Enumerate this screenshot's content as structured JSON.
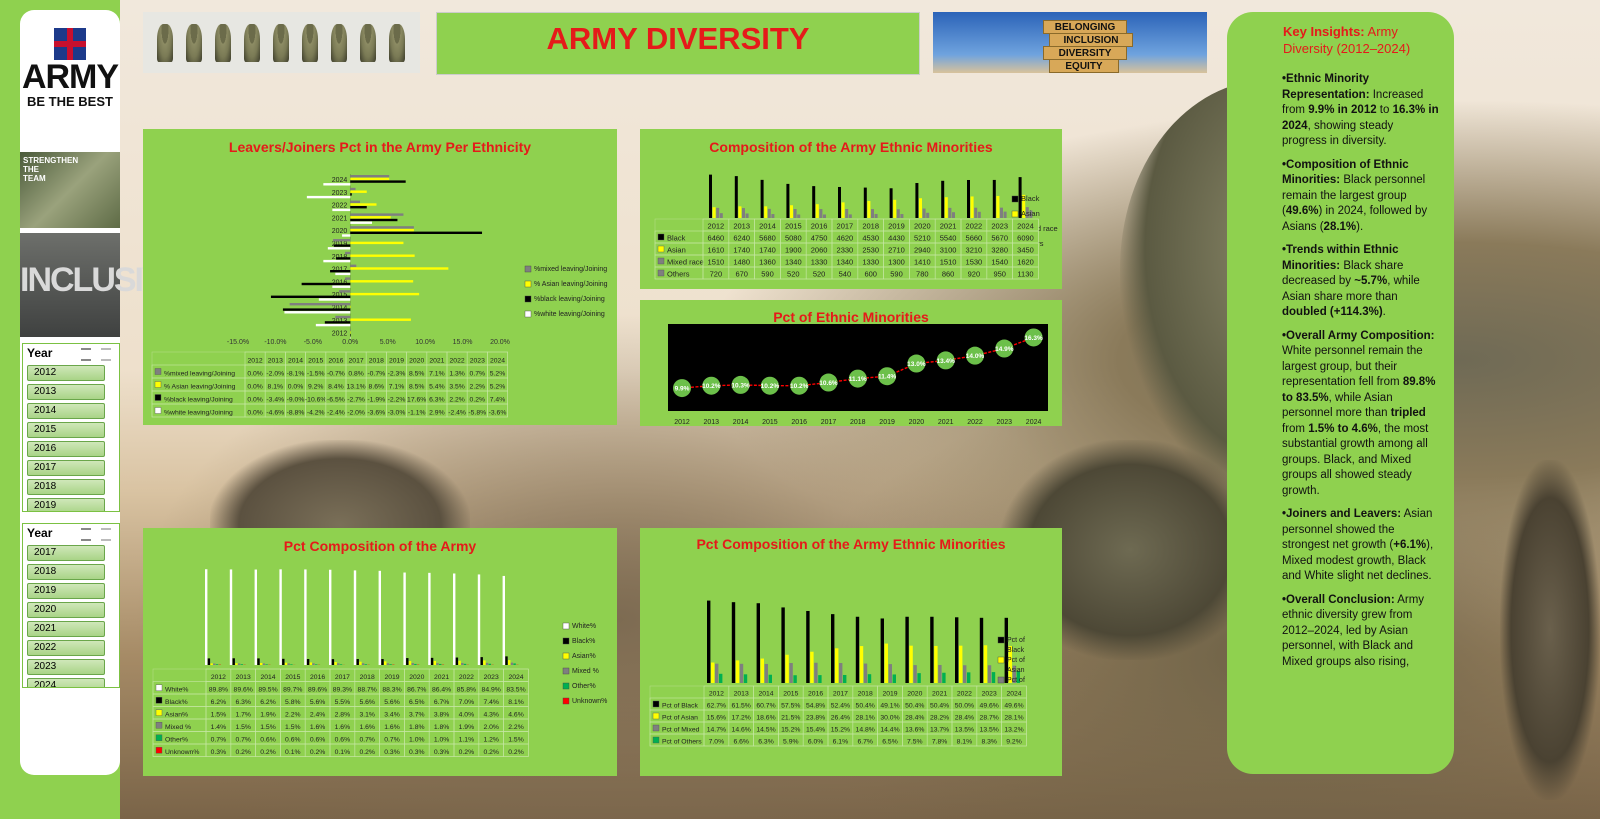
{
  "page": {
    "title": "ARMY DIVERSITY",
    "logo": {
      "word": "ARMY",
      "tagline": "BE THE BEST"
    },
    "side_images": {
      "strengthen": "STRENGTHEN THE TEAM",
      "inclusive": "INCLUSIVE"
    },
    "banner_blocks": [
      "BELONGING",
      "INCLUSION",
      "DIVERSITY",
      "EQUITY"
    ]
  },
  "slicers": [
    {
      "title": "Year",
      "items": [
        "2012",
        "2013",
        "2014",
        "2015",
        "2016",
        "2017",
        "2018",
        "2019"
      ]
    },
    {
      "title": "Year",
      "items": [
        "2017",
        "2018",
        "2019",
        "2020",
        "2021",
        "2022",
        "2023",
        "2024"
      ]
    }
  ],
  "colors": {
    "accent_red": "#e51a1a",
    "panel_green": "#8fd14f",
    "black": "#000000",
    "yellow": "#ffff00",
    "grey": "#7f7f7f",
    "white": "#ffffff",
    "green": "#00b050",
    "red_line": "#ff0000"
  },
  "chart_data": [
    {
      "type": "bar",
      "orientation": "horizontal",
      "title": "Leavers/Joiners Pct in the Army Per Ethnicity",
      "categories": [
        "2012",
        "2013",
        "2014",
        "2015",
        "2016",
        "2017",
        "2018",
        "2019",
        "2020",
        "2021",
        "2022",
        "2023",
        "2024"
      ],
      "xticks": [
        "-15.0%",
        "-10.0%",
        "-5.0%",
        "0.0%",
        "5.0%",
        "10.0%",
        "15.0%",
        "20.0%"
      ],
      "xlim": [
        -15,
        20
      ],
      "legend_position": "right",
      "series": [
        {
          "name": "%mixed leaving/Joining",
          "color": "#7f7f7f",
          "labels": [
            "0.0%",
            "-2.0%",
            "-8.1%",
            "-1.5%",
            "-0.7%",
            "0.8%",
            "-0.7%",
            "-2.3%",
            "8.5%",
            "7.1%",
            "1.3%",
            "0.7%",
            "5.2%"
          ],
          "values": [
            0.0,
            -2.0,
            -8.1,
            -1.5,
            -0.7,
            0.8,
            -0.7,
            -2.3,
            8.5,
            7.1,
            1.3,
            0.7,
            5.2
          ]
        },
        {
          "name": "% Asian leaving/Joining",
          "color": "#ffff00",
          "labels": [
            "0.0%",
            "8.1%",
            "0.0%",
            "9.2%",
            "8.4%",
            "13.1%",
            "8.6%",
            "7.1%",
            "8.5%",
            "5.4%",
            "3.5%",
            "2.2%",
            "5.2%"
          ],
          "values": [
            0.0,
            8.1,
            0.0,
            9.2,
            8.4,
            13.1,
            8.6,
            7.1,
            8.5,
            5.4,
            3.5,
            2.2,
            5.2
          ]
        },
        {
          "name": "%black leaving/Joining",
          "color": "#000000",
          "labels": [
            "0.0%",
            "-3.4%",
            "-9.0%",
            "-10.6%",
            "-6.5%",
            "-2.7%",
            "-1.9%",
            "-2.2%",
            "17.6%",
            "6.3%",
            "2.2%",
            "0.2%",
            "7.4%"
          ],
          "values": [
            0.0,
            -3.4,
            -9.0,
            -10.6,
            -6.5,
            -2.7,
            -1.9,
            -2.2,
            17.6,
            6.3,
            2.2,
            0.2,
            7.4
          ]
        },
        {
          "name": "%white leaving/Joining",
          "color": "#ffffff",
          "labels": [
            "0.0%",
            "-4.6%",
            "-8.8%",
            "-4.2%",
            "-2.4%",
            "-2.0%",
            "-3.6%",
            "-3.0%",
            "-1.1%",
            "2.9%",
            "-2.4%",
            "-5.8%",
            "-3.6%"
          ],
          "values": [
            0.0,
            -4.6,
            -8.8,
            -4.2,
            -2.4,
            -2.0,
            -3.6,
            -3.0,
            -1.1,
            2.9,
            -2.4,
            -5.8,
            -3.6
          ]
        }
      ]
    },
    {
      "type": "bar",
      "title": "Composition of the Army Ethnic Minorities",
      "categories": [
        "2012",
        "2013",
        "2014",
        "2015",
        "2016",
        "2017",
        "2018",
        "2019",
        "2020",
        "2021",
        "2022",
        "2023",
        "2024"
      ],
      "ylim": [
        0,
        7000
      ],
      "legend_position": "right",
      "series": [
        {
          "name": "Black",
          "color": "#000000",
          "values": [
            6460,
            6240,
            5680,
            5080,
            4750,
            4620,
            4530,
            4430,
            5210,
            5540,
            5660,
            5670,
            6090
          ]
        },
        {
          "name": "Asian",
          "color": "#ffff00",
          "values": [
            1610,
            1740,
            1740,
            1900,
            2060,
            2330,
            2530,
            2710,
            2940,
            3100,
            3210,
            3280,
            3450
          ]
        },
        {
          "name": "Mixed race",
          "color": "#7f7f7f",
          "values": [
            1510,
            1480,
            1360,
            1340,
            1330,
            1340,
            1330,
            1300,
            1410,
            1510,
            1530,
            1540,
            1620
          ]
        },
        {
          "name": "Others",
          "color": "#7f7f7f",
          "values": [
            720,
            670,
            590,
            520,
            520,
            540,
            600,
            590,
            780,
            860,
            920,
            950,
            1130
          ]
        }
      ]
    },
    {
      "type": "line",
      "title": "Pct of Ethnic Minorities",
      "categories": [
        "2012",
        "2013",
        "2014",
        "2015",
        "2016",
        "2017",
        "2018",
        "2019",
        "2020",
        "2021",
        "2022",
        "2023",
        "2024"
      ],
      "labels": [
        "9.9%",
        "10.2%",
        "10.3%",
        "10.2%",
        "10.2%",
        "10.6%",
        "11.1%",
        "11.4%",
        "13.0%",
        "13.4%",
        "14.0%",
        "14.9%",
        "16.3%"
      ],
      "values": [
        9.9,
        10.2,
        10.3,
        10.2,
        10.2,
        10.6,
        11.1,
        11.4,
        13.0,
        13.4,
        14.0,
        14.9,
        16.3
      ],
      "ylim": [
        7,
        18
      ]
    },
    {
      "type": "bar",
      "title": "Pct Composition of the Army",
      "categories": [
        "2012",
        "2013",
        "2014",
        "2015",
        "2016",
        "2017",
        "2018",
        "2019",
        "2020",
        "2021",
        "2022",
        "2023",
        "2024"
      ],
      "ylim": [
        0,
        90
      ],
      "legend_position": "right",
      "series": [
        {
          "name": "White%",
          "color": "#ffffff",
          "labels": [
            "89.8%",
            "89.6%",
            "89.5%",
            "89.7%",
            "89.6%",
            "89.3%",
            "88.7%",
            "88.3%",
            "86.7%",
            "86.4%",
            "85.8%",
            "84.9%",
            "83.5%"
          ],
          "values": [
            89.8,
            89.6,
            89.5,
            89.7,
            89.6,
            89.3,
            88.7,
            88.3,
            86.7,
            86.4,
            85.8,
            84.9,
            83.5
          ]
        },
        {
          "name": "Black%",
          "color": "#000000",
          "labels": [
            "6.2%",
            "6.3%",
            "6.2%",
            "5.8%",
            "5.6%",
            "5.5%",
            "5.6%",
            "5.6%",
            "6.5%",
            "6.7%",
            "7.0%",
            "7.4%",
            "8.1%"
          ],
          "values": [
            6.2,
            6.3,
            6.2,
            5.8,
            5.6,
            5.5,
            5.6,
            5.6,
            6.5,
            6.7,
            7.0,
            7.4,
            8.1
          ]
        },
        {
          "name": "Asian%",
          "color": "#ffff00",
          "labels": [
            "1.5%",
            "1.7%",
            "1.9%",
            "2.2%",
            "2.4%",
            "2.8%",
            "3.1%",
            "3.4%",
            "3.7%",
            "3.8%",
            "4.0%",
            "4.3%",
            "4.6%"
          ],
          "values": [
            1.5,
            1.7,
            1.9,
            2.2,
            2.4,
            2.8,
            3.1,
            3.4,
            3.7,
            3.8,
            4.0,
            4.3,
            4.6
          ]
        },
        {
          "name": "Mixed %",
          "color": "#7f7f7f",
          "labels": [
            "1.4%",
            "1.5%",
            "1.5%",
            "1.5%",
            "1.6%",
            "1.6%",
            "1.6%",
            "1.6%",
            "1.8%",
            "1.8%",
            "1.9%",
            "2.0%",
            "2.2%"
          ],
          "values": [
            1.4,
            1.5,
            1.5,
            1.5,
            1.6,
            1.6,
            1.6,
            1.6,
            1.8,
            1.8,
            1.9,
            2.0,
            2.2
          ]
        },
        {
          "name": "Other%",
          "color": "#00b050",
          "labels": [
            "0.7%",
            "0.7%",
            "0.6%",
            "0.6%",
            "0.6%",
            "0.6%",
            "0.7%",
            "0.7%",
            "1.0%",
            "1.0%",
            "1.1%",
            "1.2%",
            "1.5%"
          ],
          "values": [
            0.7,
            0.7,
            0.6,
            0.6,
            0.6,
            0.6,
            0.7,
            0.7,
            1.0,
            1.0,
            1.1,
            1.2,
            1.5
          ]
        },
        {
          "name": "Unknown%",
          "color": "#ff0000",
          "labels": [
            "0.3%",
            "0.2%",
            "0.2%",
            "0.1%",
            "0.2%",
            "0.1%",
            "0.2%",
            "0.3%",
            "0.3%",
            "0.3%",
            "0.2%",
            "0.2%",
            "0.2%"
          ],
          "values": [
            0.3,
            0.2,
            0.2,
            0.1,
            0.2,
            0.1,
            0.2,
            0.3,
            0.3,
            0.3,
            0.2,
            0.2,
            0.2
          ]
        }
      ]
    },
    {
      "type": "bar",
      "title": "Pct Composition of the Army Ethnic Minorities",
      "categories": [
        "2012",
        "2013",
        "2014",
        "2015",
        "2016",
        "2017",
        "2018",
        "2019",
        "2020",
        "2021",
        "2022",
        "2023",
        "2024"
      ],
      "ylim": [
        0,
        70
      ],
      "legend_position": "right",
      "series": [
        {
          "name": "Pct of Black",
          "legend": "Pct of Black",
          "color": "#000000",
          "labels": [
            "62.7%",
            "61.5%",
            "60.7%",
            "57.5%",
            "54.8%",
            "52.4%",
            "50.4%",
            "49.1%",
            "50.4%",
            "50.4%",
            "50.0%",
            "49.6%",
            "49.6%"
          ],
          "values": [
            62.7,
            61.5,
            60.7,
            57.5,
            54.8,
            52.4,
            50.4,
            49.1,
            50.4,
            50.4,
            50.0,
            49.6,
            49.6
          ]
        },
        {
          "name": "Pct of Asian",
          "legend": "Pct of Asian",
          "color": "#ffff00",
          "labels": [
            "15.6%",
            "17.2%",
            "18.6%",
            "21.5%",
            "23.8%",
            "26.4%",
            "28.1%",
            "30.0%",
            "28.4%",
            "28.2%",
            "28.4%",
            "28.7%",
            "28.1%"
          ],
          "values": [
            15.6,
            17.2,
            18.6,
            21.5,
            23.8,
            26.4,
            28.1,
            30.0,
            28.4,
            28.2,
            28.4,
            28.7,
            28.1
          ]
        },
        {
          "name": "Pct of Mixed",
          "legend": "Pct of Mixed",
          "color": "#7f7f7f",
          "labels": [
            "14.7%",
            "14.6%",
            "14.5%",
            "15.2%",
            "15.4%",
            "15.2%",
            "14.8%",
            "14.4%",
            "13.6%",
            "13.7%",
            "13.5%",
            "13.5%",
            "13.2%"
          ],
          "values": [
            14.7,
            14.6,
            14.5,
            15.2,
            15.4,
            15.2,
            14.8,
            14.4,
            13.6,
            13.7,
            13.5,
            13.5,
            13.2
          ]
        },
        {
          "name": "Pct of Others",
          "color": "#00b050",
          "labels": [
            "7.0%",
            "6.6%",
            "6.3%",
            "5.9%",
            "6.0%",
            "6.1%",
            "6.7%",
            "6.5%",
            "7.5%",
            "7.8%",
            "8.1%",
            "8.3%",
            "9.2%"
          ],
          "values": [
            7.0,
            6.6,
            6.3,
            5.9,
            6.0,
            6.1,
            6.7,
            6.5,
            7.5,
            7.8,
            8.1,
            8.3,
            9.2
          ]
        }
      ]
    }
  ],
  "insights": {
    "heading_bold": "Key Insights:",
    "heading_rest": " Army Diversity (2012–2024)",
    "paragraphs": [
      [
        {
          "b": true,
          "t": "•Ethnic Minority Representation:"
        },
        {
          "b": false,
          "t": " Increased from "
        },
        {
          "b": true,
          "t": "9.9% in 2012"
        },
        {
          "b": false,
          "t": " to "
        },
        {
          "b": true,
          "t": "16.3% in 2024"
        },
        {
          "b": false,
          "t": ", showing steady progress in diversity."
        }
      ],
      [
        {
          "b": true,
          "t": "•Composition of Ethnic Minorities:"
        },
        {
          "b": false,
          "t": " Black personnel remain the largest group ("
        },
        {
          "b": true,
          "t": "49.6%"
        },
        {
          "b": false,
          "t": ") in 2024, followed by Asians ("
        },
        {
          "b": true,
          "t": "28.1%"
        },
        {
          "b": false,
          "t": ")."
        }
      ],
      [
        {
          "b": true,
          "t": "•Trends within Ethnic Minorities:"
        },
        {
          "b": false,
          "t": " Black share decreased by "
        },
        {
          "b": true,
          "t": "~5.7%"
        },
        {
          "b": false,
          "t": ", while Asian share more than "
        },
        {
          "b": true,
          "t": "doubled (+114.3%)"
        },
        {
          "b": false,
          "t": "."
        }
      ],
      [
        {
          "b": true,
          "t": "•Overall Army Composition:"
        },
        {
          "b": false,
          "t": " White personnel remain the largest group, but their representation fell from "
        },
        {
          "b": true,
          "t": "89.8% to 83.5%"
        },
        {
          "b": false,
          "t": ", while Asian personnel more than "
        },
        {
          "b": true,
          "t": "tripled"
        },
        {
          "b": false,
          "t": " from "
        },
        {
          "b": true,
          "t": "1.5% to 4.6%"
        },
        {
          "b": false,
          "t": ", the most substantial growth among all groups. Black, and Mixed groups all showed steady growth."
        }
      ],
      [
        {
          "b": true,
          "t": "•Joiners and Leavers:"
        },
        {
          "b": false,
          "t": " Asian personnel showed the strongest net growth ("
        },
        {
          "b": true,
          "t": "+6.1%"
        },
        {
          "b": false,
          "t": "), Mixed modest growth, Black and White slight net declines."
        }
      ],
      [
        {
          "b": true,
          "t": "•Overall Conclusion:"
        },
        {
          "b": false,
          "t": " Army ethnic diversity grew from 2012–2024, led by Asian personnel, with Black and Mixed groups also rising,"
        }
      ]
    ]
  }
}
